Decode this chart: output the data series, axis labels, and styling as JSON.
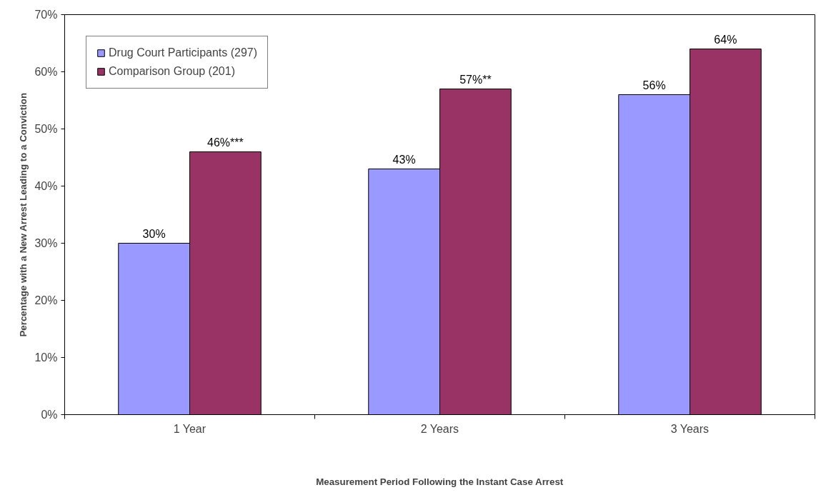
{
  "chart_data": {
    "type": "bar",
    "xlabel": "Measurement Period Following the Instant Case Arrest",
    "ylabel": "Percentage with a New Arrest Leading to a Conviction",
    "categories": [
      "1 Year",
      "2 Years",
      "3 Years"
    ],
    "series": [
      {
        "name": "Drug Court Participants (297)",
        "color": "#9999ff",
        "values": [
          30,
          43,
          56
        ],
        "value_labels": [
          "30%",
          "43%",
          "56%"
        ]
      },
      {
        "name": "Comparison Group (201)",
        "color": "#993366",
        "values": [
          46,
          57,
          64
        ],
        "value_labels": [
          "46%***",
          "57%**",
          "64%"
        ]
      }
    ],
    "ylim": [
      0,
      70
    ],
    "yticks": [
      {
        "value": 0,
        "label": "0%"
      },
      {
        "value": 10,
        "label": "10%"
      },
      {
        "value": 20,
        "label": "20%"
      },
      {
        "value": 30,
        "label": "30%"
      },
      {
        "value": 40,
        "label": "40%"
      },
      {
        "value": 50,
        "label": "50%"
      },
      {
        "value": 60,
        "label": "60%"
      },
      {
        "value": 70,
        "label": "70%"
      }
    ],
    "grid": false,
    "legend": "top left"
  }
}
